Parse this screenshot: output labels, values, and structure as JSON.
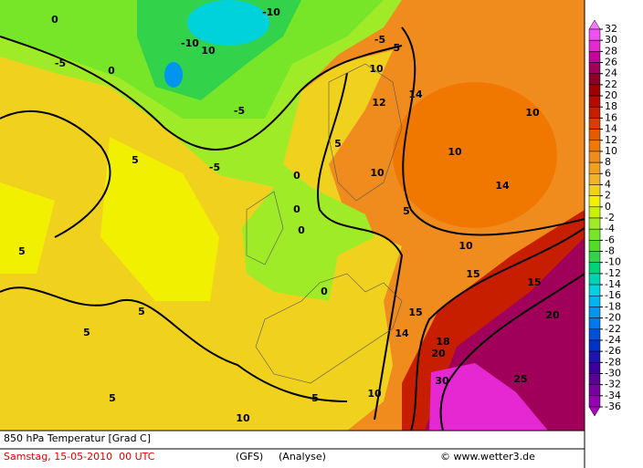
{
  "map": {
    "legend": {
      "ticks": [
        32,
        30,
        28,
        26,
        24,
        22,
        20,
        18,
        16,
        14,
        12,
        10,
        8,
        6,
        4,
        2,
        0,
        -2,
        -4,
        -6,
        -8,
        -10,
        -12,
        -14,
        -16,
        -18,
        -20,
        -22,
        -24,
        -26,
        -28,
        -30,
        -32,
        -34,
        -36
      ],
      "colors": [
        "#ff78ff",
        "#f050f0",
        "#e628d2",
        "#c8009b",
        "#a0005a",
        "#8c0028",
        "#a00000",
        "#b40a00",
        "#c81e00",
        "#dc3c00",
        "#e65a00",
        "#f07800",
        "#f08c1e",
        "#f0a01e",
        "#f0b428",
        "#f0d21e",
        "#f0f000",
        "#c8f000",
        "#a0eb28",
        "#78e628",
        "#50dc28",
        "#32d24b",
        "#00d278",
        "#00d2b4",
        "#00d2dc",
        "#00b4f0",
        "#0096f0",
        "#0078f0",
        "#0050dc",
        "#0032c8",
        "#1e14b4",
        "#3c00a0",
        "#5a0096",
        "#7800a0",
        "#9600b4",
        "#aa00c8"
      ]
    },
    "contour_labels": [
      0,
      -10,
      10,
      -10,
      0,
      -5,
      -5,
      -5,
      0,
      0,
      0,
      0,
      10,
      10,
      10,
      10,
      10,
      15,
      15,
      15,
      20,
      20,
      30,
      25,
      5,
      5,
      5,
      5,
      5,
      5,
      10,
      10,
      5,
      5,
      -5,
      -5,
      12,
      14,
      14,
      18,
      14
    ]
  },
  "footer": {
    "title": "850 hPa Temperatur [Grad C]",
    "date": "Samstag, 15-05-2010  00 UTC",
    "model": "(GFS)",
    "run": "(Analyse)",
    "credit": "© www.wetter3.de"
  }
}
